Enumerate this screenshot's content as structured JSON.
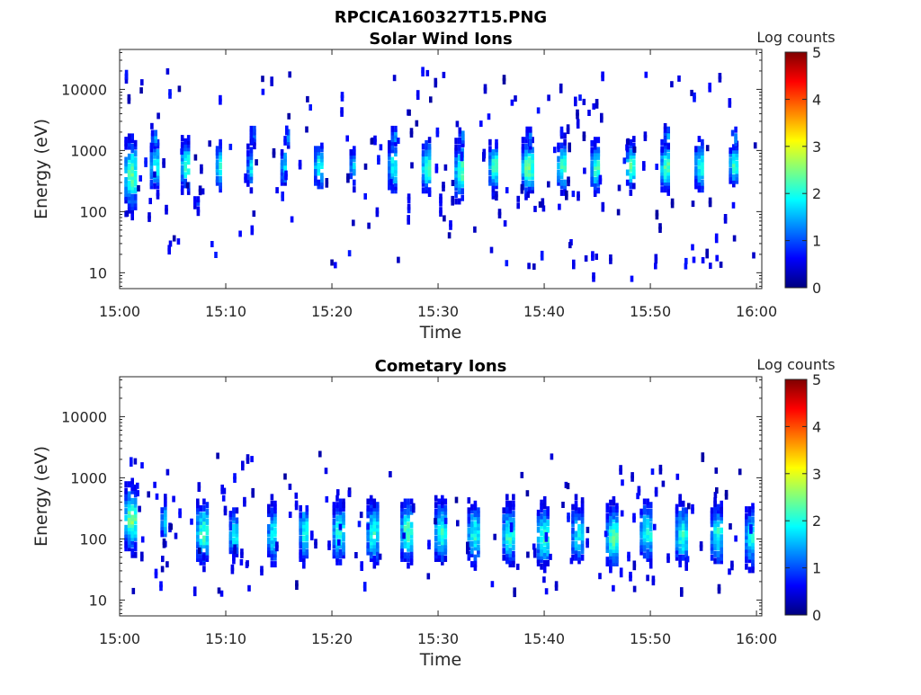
{
  "figure": {
    "title": "RPCICA160327T15.PNG"
  },
  "colorbar_colors": [
    "#00007f",
    "#0000ff",
    "#007fff",
    "#00ffff",
    "#7fff7f",
    "#ffff00",
    "#ff7f00",
    "#ff0000",
    "#7f0000"
  ],
  "chart_data": [
    {
      "type": "heatmap",
      "title": "Solar Wind Ions",
      "xlabel": "Time",
      "ylabel": "Energy (eV)",
      "x_ticks": [
        "15:00",
        "15:10",
        "15:20",
        "15:30",
        "15:40",
        "15:50",
        "16:00"
      ],
      "x_range_minutes": [
        0,
        60.5
      ],
      "y_scale": "log",
      "y_range": [
        5.5,
        45000
      ],
      "y_ticks": [
        10,
        100,
        1000,
        10000
      ],
      "y_tick_labels": [
        "10",
        "100",
        "1000",
        "10000"
      ],
      "colorbar": {
        "label": "Log counts",
        "range": [
          0,
          5
        ],
        "ticks": [
          "0",
          "1",
          "2",
          "3",
          "4",
          "5"
        ],
        "colormap": "jet"
      },
      "bursts": [
        {
          "t": 1.0,
          "e": 420,
          "w": 1.1,
          "s": 0.35,
          "p": 2.3
        },
        {
          "t": 3.3,
          "e": 560,
          "w": 0.9,
          "s": 0.25,
          "p": 2.0
        },
        {
          "t": 6.2,
          "e": 580,
          "w": 0.9,
          "s": 0.25,
          "p": 2.3
        },
        {
          "t": 9.4,
          "e": 560,
          "w": 0.7,
          "s": 0.22,
          "p": 2.1
        },
        {
          "t": 12.3,
          "e": 540,
          "w": 0.7,
          "s": 0.2,
          "p": 1.8
        },
        {
          "t": 15.5,
          "e": 560,
          "w": 0.7,
          "s": 0.2,
          "p": 1.7
        },
        {
          "t": 18.7,
          "e": 560,
          "w": 0.8,
          "s": 0.22,
          "p": 2.1
        },
        {
          "t": 22.0,
          "e": 560,
          "w": 0.7,
          "s": 0.2,
          "p": 1.6
        },
        {
          "t": 25.7,
          "e": 540,
          "w": 0.9,
          "s": 0.25,
          "p": 2.0
        },
        {
          "t": 28.9,
          "e": 540,
          "w": 0.9,
          "s": 0.25,
          "p": 2.3
        },
        {
          "t": 32.0,
          "e": 460,
          "w": 0.9,
          "s": 0.28,
          "p": 2.3
        },
        {
          "t": 35.2,
          "e": 560,
          "w": 0.9,
          "s": 0.25,
          "p": 2.2
        },
        {
          "t": 38.4,
          "e": 540,
          "w": 1.1,
          "s": 0.25,
          "p": 2.4
        },
        {
          "t": 41.7,
          "e": 560,
          "w": 1.0,
          "s": 0.25,
          "p": 2.2
        },
        {
          "t": 44.8,
          "e": 540,
          "w": 0.9,
          "s": 0.25,
          "p": 2.2
        },
        {
          "t": 48.1,
          "e": 560,
          "w": 0.8,
          "s": 0.22,
          "p": 2.3
        },
        {
          "t": 51.4,
          "e": 560,
          "w": 0.9,
          "s": 0.25,
          "p": 2.3
        },
        {
          "t": 54.6,
          "e": 560,
          "w": 0.9,
          "s": 0.25,
          "p": 2.0
        },
        {
          "t": 57.8,
          "e": 600,
          "w": 0.8,
          "s": 0.2,
          "p": 2.2
        },
        {
          "t": 3.3,
          "e": 1700,
          "w": 0.7,
          "s": 0.1,
          "p": 1.5
        },
        {
          "t": 12.6,
          "e": 1750,
          "w": 0.7,
          "s": 0.1,
          "p": 1.3
        },
        {
          "t": 15.8,
          "e": 1750,
          "w": 0.7,
          "s": 0.1,
          "p": 1.5
        },
        {
          "t": 25.9,
          "e": 1750,
          "w": 0.7,
          "s": 0.1,
          "p": 1.5
        },
        {
          "t": 32.2,
          "e": 1650,
          "w": 0.6,
          "s": 0.1,
          "p": 1.3
        },
        {
          "t": 38.6,
          "e": 1700,
          "w": 0.7,
          "s": 0.1,
          "p": 1.4
        },
        {
          "t": 51.6,
          "e": 1700,
          "w": 0.7,
          "s": 0.1,
          "p": 1.4
        },
        {
          "t": 57.9,
          "e": 1700,
          "w": 0.6,
          "s": 0.1,
          "p": 1.4
        },
        {
          "t": 7.2,
          "e": 140,
          "w": 0.5,
          "s": 0.12,
          "p": 0.9
        },
        {
          "t": 27.3,
          "e": 120,
          "w": 0.4,
          "s": 0.15,
          "p": 0.9
        },
        {
          "t": 30.3,
          "e": 120,
          "w": 0.4,
          "s": 0.15,
          "p": 0.9
        },
        {
          "t": 37.6,
          "e": 110,
          "w": 0.4,
          "s": 0.12,
          "p": 0.8
        },
        {
          "t": 44.6,
          "e": 7,
          "w": 0.2,
          "s": 0.1,
          "p": 0.8
        },
        {
          "t": 48.2,
          "e": 7,
          "w": 0.2,
          "s": 0.1,
          "p": 0.8
        }
      ],
      "noise_points": 200,
      "noise_e_range": [
        12,
        20000
      ]
    },
    {
      "type": "heatmap",
      "title": "Cometary Ions",
      "xlabel": "Time",
      "ylabel": "Energy (eV)",
      "x_ticks": [
        "15:00",
        "15:10",
        "15:20",
        "15:30",
        "15:40",
        "15:50",
        "16:00"
      ],
      "x_range_minutes": [
        0,
        60.5
      ],
      "y_scale": "log",
      "y_range": [
        5.5,
        45000
      ],
      "y_ticks": [
        10,
        100,
        1000,
        10000
      ],
      "y_tick_labels": [
        "10",
        "100",
        "1000",
        "10000"
      ],
      "colorbar": {
        "label": "Log counts",
        "range": [
          0,
          5
        ],
        "ticks": [
          "0",
          "1",
          "2",
          "3",
          "4",
          "5"
        ],
        "colormap": "jet"
      },
      "bursts": [
        {
          "t": 1.0,
          "e": 220,
          "w": 1.1,
          "s": 0.3,
          "p": 2.5
        },
        {
          "t": 4.2,
          "e": 200,
          "w": 0.7,
          "s": 0.2,
          "p": 1.8
        },
        {
          "t": 7.8,
          "e": 130,
          "w": 1.2,
          "s": 0.3,
          "p": 2.2
        },
        {
          "t": 10.8,
          "e": 120,
          "w": 1.0,
          "s": 0.25,
          "p": 1.8
        },
        {
          "t": 14.4,
          "e": 120,
          "w": 1.0,
          "s": 0.3,
          "p": 1.9
        },
        {
          "t": 17.4,
          "e": 130,
          "w": 1.0,
          "s": 0.3,
          "p": 2.0
        },
        {
          "t": 20.6,
          "e": 130,
          "w": 1.1,
          "s": 0.3,
          "p": 2.0
        },
        {
          "t": 23.8,
          "e": 130,
          "w": 1.1,
          "s": 0.3,
          "p": 2.1
        },
        {
          "t": 27.0,
          "e": 130,
          "w": 1.1,
          "s": 0.3,
          "p": 2.2
        },
        {
          "t": 30.2,
          "e": 130,
          "w": 1.1,
          "s": 0.3,
          "p": 2.1
        },
        {
          "t": 33.3,
          "e": 120,
          "w": 1.1,
          "s": 0.3,
          "p": 2.0
        },
        {
          "t": 36.6,
          "e": 120,
          "w": 1.1,
          "s": 0.3,
          "p": 2.1
        },
        {
          "t": 39.9,
          "e": 110,
          "w": 1.2,
          "s": 0.3,
          "p": 2.2
        },
        {
          "t": 43.1,
          "e": 120,
          "w": 1.1,
          "s": 0.3,
          "p": 1.8
        },
        {
          "t": 46.4,
          "e": 110,
          "w": 1.2,
          "s": 0.3,
          "p": 2.3
        },
        {
          "t": 49.6,
          "e": 130,
          "w": 1.2,
          "s": 0.3,
          "p": 2.0
        },
        {
          "t": 52.9,
          "e": 120,
          "w": 1.1,
          "s": 0.3,
          "p": 2.1
        },
        {
          "t": 56.2,
          "e": 120,
          "w": 1.1,
          "s": 0.3,
          "p": 2.0
        },
        {
          "t": 59.4,
          "e": 110,
          "w": 1.0,
          "s": 0.3,
          "p": 2.0
        }
      ],
      "noise_points": 150,
      "noise_e_range": [
        12,
        2500
      ]
    }
  ]
}
